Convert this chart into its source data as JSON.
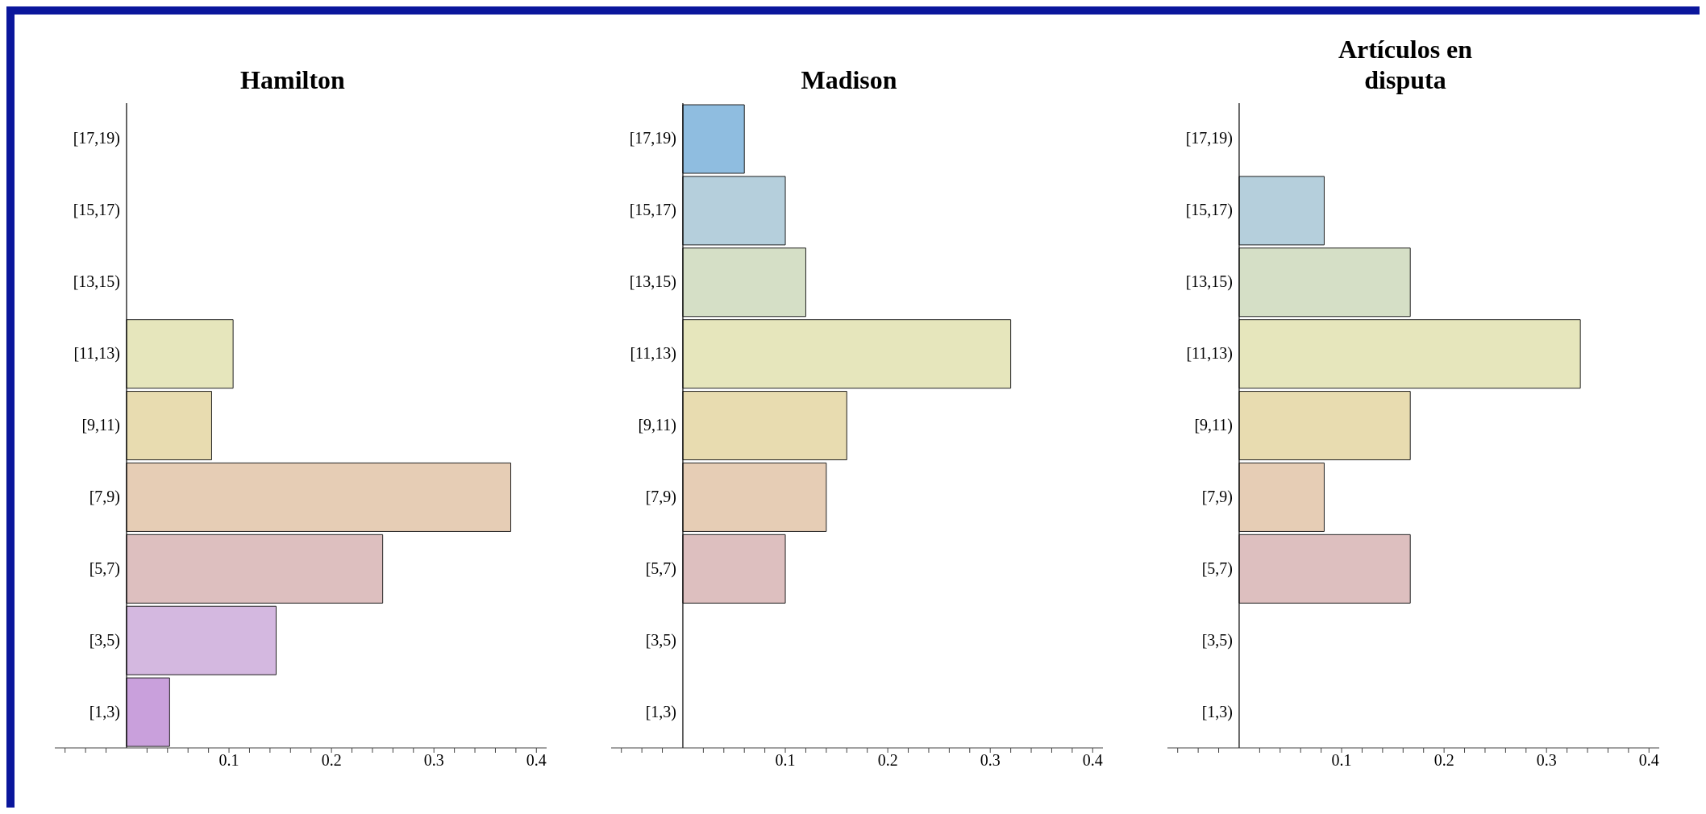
{
  "chart_data": [
    {
      "type": "bar",
      "orientation": "horizontal",
      "title": "Hamilton",
      "categories": [
        "[17,19)",
        "[15,17)",
        "[13,15)",
        "[11,13)",
        "[9,11)",
        "[7,9)",
        "[5,7)",
        "[3,5)",
        "[1,3)"
      ],
      "values": [
        0,
        0,
        0,
        0.104,
        0.083,
        0.375,
        0.25,
        0.146,
        0.042
      ],
      "colors": [
        "#8fbde0",
        "#b5cfdc",
        "#d5dfc6",
        "#e6e6bc",
        "#e8dcb0",
        "#e6cdb5",
        "#ddbfbf",
        "#d4b8e0",
        "#c9a0dc"
      ],
      "xlim": [
        -0.07,
        0.41
      ],
      "xticks": [
        {
          "value": -0.06,
          "label": null
        },
        {
          "value": -0.04,
          "label": null
        },
        {
          "value": -0.02,
          "label": null
        },
        {
          "value": 0.02,
          "label": null
        },
        {
          "value": 0.04,
          "label": null
        },
        {
          "value": 0.06,
          "label": null
        },
        {
          "value": 0.08,
          "label": null
        },
        0.1,
        {
          "value": 0.12,
          "label": null
        },
        {
          "value": 0.14,
          "label": null
        },
        {
          "value": 0.16,
          "label": null
        },
        {
          "value": 0.18,
          "label": null
        },
        0.2,
        {
          "value": 0.22,
          "label": null
        },
        {
          "value": 0.24,
          "label": null
        },
        {
          "value": 0.26,
          "label": null
        },
        {
          "value": 0.28,
          "label": null
        },
        0.3,
        {
          "value": 0.32,
          "label": null
        },
        {
          "value": 0.34,
          "label": null
        },
        {
          "value": 0.36,
          "label": null
        },
        {
          "value": 0.38,
          "label": null
        },
        0.4
      ]
    },
    {
      "type": "bar",
      "orientation": "horizontal",
      "title": "Madison",
      "categories": [
        "[17,19)",
        "[15,17)",
        "[13,15)",
        "[11,13)",
        "[9,11)",
        "[7,9)",
        "[5,7)",
        "[3,5)",
        "[1,3)"
      ],
      "values": [
        0.06,
        0.1,
        0.12,
        0.32,
        0.16,
        0.14,
        0.1,
        0,
        0
      ],
      "colors": [
        "#8fbde0",
        "#b5cfdc",
        "#d5dfc6",
        "#e6e6bc",
        "#e8dcb0",
        "#e6cdb5",
        "#ddbfbf",
        "#d4b8e0",
        "#c9a0dc"
      ],
      "xlim": [
        -0.07,
        0.41
      ],
      "xticks": [
        {
          "value": -0.06,
          "label": null
        },
        {
          "value": -0.04,
          "label": null
        },
        {
          "value": -0.02,
          "label": null
        },
        {
          "value": 0.02,
          "label": null
        },
        {
          "value": 0.04,
          "label": null
        },
        {
          "value": 0.06,
          "label": null
        },
        {
          "value": 0.08,
          "label": null
        },
        0.1,
        {
          "value": 0.12,
          "label": null
        },
        {
          "value": 0.14,
          "label": null
        },
        {
          "value": 0.16,
          "label": null
        },
        {
          "value": 0.18,
          "label": null
        },
        0.2,
        {
          "value": 0.22,
          "label": null
        },
        {
          "value": 0.24,
          "label": null
        },
        {
          "value": 0.26,
          "label": null
        },
        {
          "value": 0.28,
          "label": null
        },
        0.3,
        {
          "value": 0.32,
          "label": null
        },
        {
          "value": 0.34,
          "label": null
        },
        {
          "value": 0.36,
          "label": null
        },
        {
          "value": 0.38,
          "label": null
        },
        0.4
      ]
    },
    {
      "type": "bar",
      "orientation": "horizontal",
      "title": "Artículos en disputa",
      "categories": [
        "[17,19)",
        "[15,17)",
        "[13,15)",
        "[11,13)",
        "[9,11)",
        "[7,9)",
        "[5,7)",
        "[3,5)",
        "[1,3)"
      ],
      "values": [
        0,
        0.083,
        0.167,
        0.333,
        0.167,
        0.083,
        0.167,
        0,
        0
      ],
      "colors": [
        "#8fbde0",
        "#b5cfdc",
        "#d5dfc6",
        "#e6e6bc",
        "#e8dcb0",
        "#e6cdb5",
        "#ddbfbf",
        "#d4b8e0",
        "#c9a0dc"
      ],
      "xlim": [
        -0.07,
        0.41
      ],
      "xticks": [
        {
          "value": -0.06,
          "label": null
        },
        {
          "value": -0.04,
          "label": null
        },
        {
          "value": -0.02,
          "label": null
        },
        {
          "value": 0.02,
          "label": null
        },
        {
          "value": 0.04,
          "label": null
        },
        {
          "value": 0.06,
          "label": null
        },
        {
          "value": 0.08,
          "label": null
        },
        0.1,
        {
          "value": 0.12,
          "label": null
        },
        {
          "value": 0.14,
          "label": null
        },
        {
          "value": 0.16,
          "label": null
        },
        {
          "value": 0.18,
          "label": null
        },
        0.2,
        {
          "value": 0.22,
          "label": null
        },
        {
          "value": 0.24,
          "label": null
        },
        {
          "value": 0.26,
          "label": null
        },
        {
          "value": 0.28,
          "label": null
        },
        0.3,
        {
          "value": 0.32,
          "label": null
        },
        {
          "value": 0.34,
          "label": null
        },
        {
          "value": 0.36,
          "label": null
        },
        {
          "value": 0.38,
          "label": null
        },
        0.4
      ]
    }
  ]
}
